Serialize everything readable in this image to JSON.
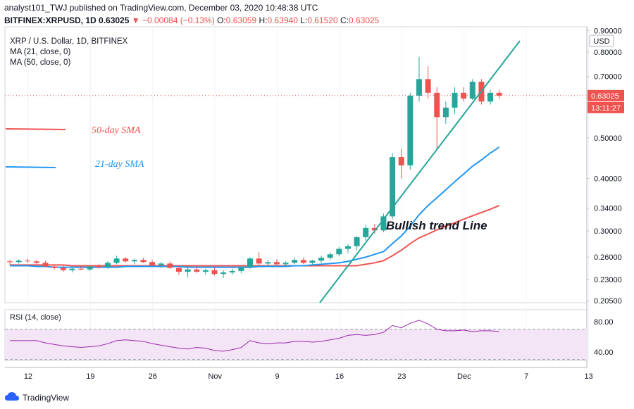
{
  "header": {
    "line1": "analyst101_TWJ published on TradingView.com, December 03, 2020 10:48:38 UTC",
    "symbol": "BITFINEX:XRPUSD, 1D",
    "price": "0.63025",
    "change": "▼ −0.00084 (−0.13%)",
    "o_label": "O:",
    "o": "0.63059",
    "h_label": "H:",
    "h": "0.63940",
    "l_label": "L:",
    "l": "0.61520",
    "c_label": "C:",
    "c": "0.63025"
  },
  "legend": {
    "title": "XRP / U.S. Dollar, 1D, BITFINEX",
    "ma21": "MA (21, close, 0)",
    "ma50": "MA (50, close, 0)"
  },
  "annotations": {
    "sma50": "50-day SMA",
    "sma21": "21-day SMA",
    "trend": "Bullish trend Line"
  },
  "price_axis": {
    "currency": "USD",
    "last_price": "0.63025",
    "countdown": "13:11:27"
  },
  "rsi": {
    "label": "RSI (14, close)"
  },
  "footer": {
    "brand": "TradingView"
  },
  "colors": {
    "up": "#26a69a",
    "down": "#ef5350",
    "ma21": "#2196f3",
    "ma50": "#ef5350",
    "trend": "#26a69a",
    "rsi": "#9c27b0",
    "rsi_band": "#f3e5f5"
  },
  "chart_data": {
    "type": "candlestick",
    "scale": "log",
    "price_ticks": [
      "0.90000",
      "0.80000",
      "0.70000",
      "0.50000",
      "0.40000",
      "0.34000",
      "0.30000",
      "0.26000",
      "0.23000",
      "0.20500"
    ],
    "x_ticks": [
      "12",
      "19",
      "26",
      "Nov",
      "9",
      "16",
      "23",
      "Dec",
      "7",
      "13"
    ],
    "candles": [
      [
        0.254,
        0.256,
        0.249,
        0.253
      ],
      [
        0.253,
        0.257,
        0.251,
        0.255
      ],
      [
        0.255,
        0.258,
        0.252,
        0.254
      ],
      [
        0.254,
        0.256,
        0.25,
        0.252
      ],
      [
        0.252,
        0.255,
        0.246,
        0.247
      ],
      [
        0.247,
        0.25,
        0.243,
        0.245
      ],
      [
        0.245,
        0.248,
        0.24,
        0.242
      ],
      [
        0.242,
        0.246,
        0.239,
        0.244
      ],
      [
        0.244,
        0.247,
        0.242,
        0.243
      ],
      [
        0.243,
        0.248,
        0.241,
        0.247
      ],
      [
        0.247,
        0.25,
        0.244,
        0.246
      ],
      [
        0.246,
        0.254,
        0.244,
        0.252
      ],
      [
        0.252,
        0.262,
        0.25,
        0.258
      ],
      [
        0.258,
        0.26,
        0.252,
        0.254
      ],
      [
        0.254,
        0.258,
        0.25,
        0.256
      ],
      [
        0.256,
        0.259,
        0.252,
        0.253
      ],
      [
        0.253,
        0.256,
        0.248,
        0.249
      ],
      [
        0.249,
        0.253,
        0.245,
        0.251
      ],
      [
        0.251,
        0.254,
        0.244,
        0.245
      ],
      [
        0.245,
        0.248,
        0.236,
        0.24
      ],
      [
        0.24,
        0.245,
        0.233,
        0.243
      ],
      [
        0.243,
        0.246,
        0.238,
        0.24
      ],
      [
        0.24,
        0.244,
        0.236,
        0.242
      ],
      [
        0.242,
        0.245,
        0.235,
        0.237
      ],
      [
        0.237,
        0.242,
        0.232,
        0.239
      ],
      [
        0.239,
        0.244,
        0.236,
        0.241
      ],
      [
        0.241,
        0.248,
        0.238,
        0.246
      ],
      [
        0.246,
        0.26,
        0.244,
        0.258
      ],
      [
        0.258,
        0.267,
        0.248,
        0.251
      ],
      [
        0.251,
        0.256,
        0.248,
        0.253
      ],
      [
        0.253,
        0.257,
        0.249,
        0.25
      ],
      [
        0.25,
        0.254,
        0.247,
        0.252
      ],
      [
        0.252,
        0.26,
        0.25,
        0.256
      ],
      [
        0.256,
        0.26,
        0.25,
        0.252
      ],
      [
        0.252,
        0.256,
        0.249,
        0.255
      ],
      [
        0.255,
        0.262,
        0.252,
        0.259
      ],
      [
        0.259,
        0.267,
        0.256,
        0.264
      ],
      [
        0.264,
        0.275,
        0.261,
        0.272
      ],
      [
        0.272,
        0.279,
        0.266,
        0.276
      ],
      [
        0.276,
        0.292,
        0.27,
        0.29
      ],
      [
        0.29,
        0.31,
        0.285,
        0.305
      ],
      [
        0.305,
        0.312,
        0.296,
        0.301
      ],
      [
        0.301,
        0.33,
        0.298,
        0.325
      ],
      [
        0.325,
        0.46,
        0.32,
        0.45
      ],
      [
        0.45,
        0.47,
        0.4,
        0.43
      ],
      [
        0.43,
        0.64,
        0.42,
        0.63
      ],
      [
        0.63,
        0.78,
        0.61,
        0.69
      ],
      [
        0.69,
        0.74,
        0.62,
        0.64
      ],
      [
        0.64,
        0.66,
        0.47,
        0.56
      ],
      [
        0.56,
        0.61,
        0.54,
        0.59
      ],
      [
        0.59,
        0.66,
        0.57,
        0.64
      ],
      [
        0.64,
        0.66,
        0.61,
        0.62
      ],
      [
        0.62,
        0.69,
        0.615,
        0.68
      ],
      [
        0.68,
        0.69,
        0.6,
        0.61
      ],
      [
        0.61,
        0.65,
        0.6,
        0.64
      ],
      [
        0.64,
        0.65,
        0.62,
        0.63
      ]
    ],
    "ma21": [
      0.248,
      0.248,
      0.248,
      0.247,
      0.247,
      0.246,
      0.246,
      0.246,
      0.246,
      0.246,
      0.246,
      0.246,
      0.246,
      0.247,
      0.247,
      0.247,
      0.247,
      0.247,
      0.247,
      0.247,
      0.246,
      0.246,
      0.246,
      0.246,
      0.246,
      0.246,
      0.246,
      0.246,
      0.247,
      0.247,
      0.247,
      0.247,
      0.248,
      0.248,
      0.249,
      0.25,
      0.251,
      0.252,
      0.254,
      0.257,
      0.26,
      0.264,
      0.268,
      0.28,
      0.292,
      0.308,
      0.328,
      0.345,
      0.36,
      0.376,
      0.393,
      0.41,
      0.428,
      0.443,
      0.46,
      0.475
    ],
    "ma50": [
      0.249,
      0.249,
      0.249,
      0.249,
      0.249,
      0.249,
      0.249,
      0.248,
      0.248,
      0.248,
      0.248,
      0.248,
      0.248,
      0.248,
      0.248,
      0.248,
      0.248,
      0.248,
      0.248,
      0.248,
      0.248,
      0.248,
      0.248,
      0.248,
      0.248,
      0.248,
      0.248,
      0.248,
      0.248,
      0.248,
      0.248,
      0.248,
      0.248,
      0.248,
      0.248,
      0.248,
      0.248,
      0.248,
      0.248,
      0.248,
      0.25,
      0.252,
      0.255,
      0.262,
      0.27,
      0.28,
      0.289,
      0.295,
      0.302,
      0.308,
      0.314,
      0.32,
      0.326,
      0.332,
      0.338,
      0.345
    ],
    "rsi": [
      55,
      55,
      55,
      55,
      52,
      50,
      48,
      47,
      46,
      47,
      48,
      51,
      55,
      56,
      55,
      54,
      51,
      49,
      47,
      45,
      44,
      46,
      45,
      42,
      41,
      43,
      46,
      55,
      52,
      51,
      52,
      52,
      54,
      54,
      53,
      54,
      56,
      58,
      62,
      63,
      62,
      63,
      66,
      75,
      72,
      78,
      82,
      77,
      70,
      68,
      68,
      69,
      67,
      68,
      68,
      67
    ],
    "rsi_ticks": [
      "80.00",
      "40.00"
    ]
  }
}
